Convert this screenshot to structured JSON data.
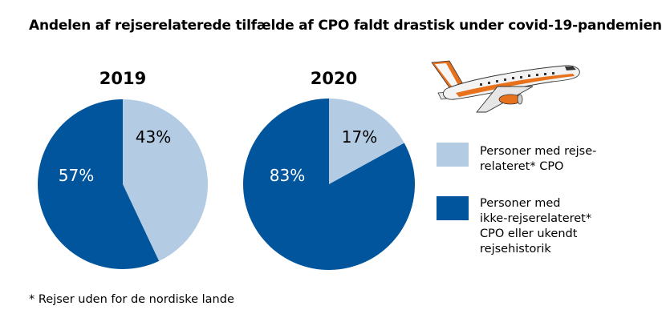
{
  "title": "Andelen af rejserelaterede tilfælde af CPO faldt drastisk under covid-19-pandemien",
  "footnote": "* Rejser uden for de nordiske lande",
  "colors": {
    "travel": "#b3cce4",
    "non_travel": "#00559c",
    "plane_accent": "#e8711c"
  },
  "legend": {
    "travel": [
      "Personer med rejse-",
      "relateret* CPO"
    ],
    "non_travel": [
      "Personer med",
      "ikke-rejserelateret*",
      "CPO eller ukendt",
      "rejsehistorik"
    ]
  },
  "chart_data": [
    {
      "type": "pie",
      "title": "2019",
      "slices": [
        {
          "name": "Personer med rejserelateret* CPO",
          "value": 43,
          "label": "43%"
        },
        {
          "name": "Personer med ikke-rejserelateret* CPO eller ukendt rejsehistorik",
          "value": 57,
          "label": "57%"
        }
      ]
    },
    {
      "type": "pie",
      "title": "2020",
      "slices": [
        {
          "name": "Personer med rejserelateret* CPO",
          "value": 17,
          "label": "17%"
        },
        {
          "name": "Personer med ikke-rejserelateret* CPO eller ukendt rejsehistorik",
          "value": 83,
          "label": "83%"
        }
      ]
    }
  ],
  "decoration": {
    "icon": "airplane-icon"
  }
}
